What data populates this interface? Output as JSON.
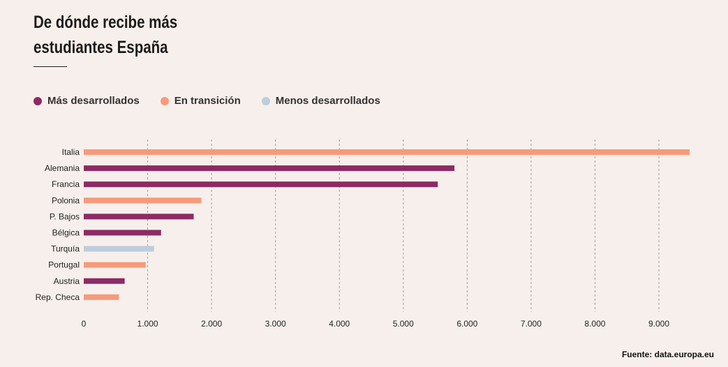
{
  "title_line1": "De dónde recibe más",
  "title_line2": "estudiantes España",
  "legend": [
    {
      "label": "Más desarrollados",
      "color": "#8e2a66"
    },
    {
      "label": "En transición",
      "color": "#f79a7a"
    },
    {
      "label": "Menos desarrollados",
      "color": "#bccddf"
    }
  ],
  "source": "Fuente: data.europa.eu",
  "chart_data": {
    "type": "bar",
    "orientation": "horizontal",
    "categories": [
      "Italia",
      "Alemania",
      "Francia",
      "Polonia",
      "P. Bajos",
      "Bélgica",
      "Turquía",
      "Portugal",
      "Austria",
      "Rep. Checa"
    ],
    "values": [
      9480,
      5800,
      5540,
      1840,
      1720,
      1210,
      1100,
      970,
      640,
      550
    ],
    "groups": [
      "En transición",
      "Más desarrollados",
      "Más desarrollados",
      "En transición",
      "Más desarrollados",
      "Más desarrollados",
      "Menos desarrollados",
      "En transición",
      "Más desarrollados",
      "En transición"
    ],
    "xlim": [
      0,
      9500
    ],
    "xticks": [
      0,
      1000,
      2000,
      3000,
      4000,
      5000,
      6000,
      7000,
      8000,
      9000
    ],
    "xtick_labels": [
      "0",
      "1.000",
      "2.000",
      "3.000",
      "4.000",
      "5.000",
      "6.000",
      "7.000",
      "8.000",
      "9.000"
    ],
    "grid": "vertical-dashed",
    "legend_position": "top-left"
  }
}
